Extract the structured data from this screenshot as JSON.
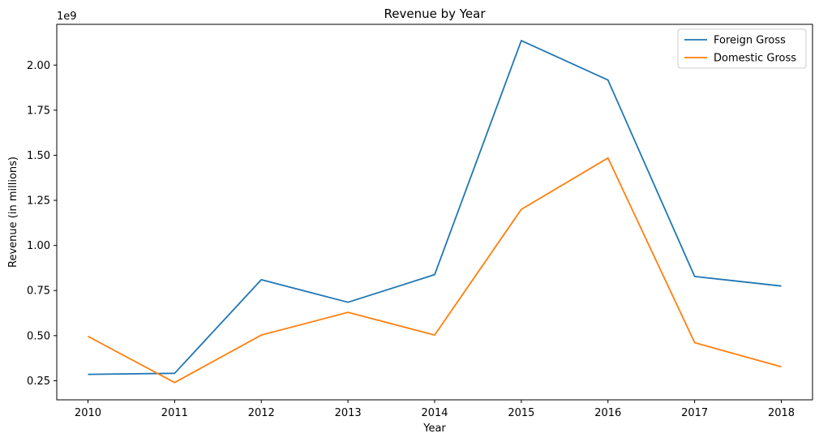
{
  "chart_data": {
    "type": "line",
    "title": "Revenue by Year",
    "xlabel": "Year",
    "ylabel": "Revenue (in millions)",
    "y_offset_label": "1e9",
    "categories": [
      "2010",
      "2011",
      "2012",
      "2013",
      "2014",
      "2015",
      "2016",
      "2017",
      "2018"
    ],
    "xlim": [
      2009.64,
      2018.36
    ],
    "ylim": [
      0.144,
      2.226
    ],
    "yticks": [
      0.25,
      0.5,
      0.75,
      1.0,
      1.25,
      1.5,
      1.75,
      2.0
    ],
    "ytick_labels": [
      "0.25",
      "0.50",
      "0.75",
      "1.00",
      "1.25",
      "1.50",
      "1.75",
      "2.00"
    ],
    "grid": false,
    "legend_position": "top-right",
    "series": [
      {
        "name": "Foreign Gross",
        "color": "#1f77b4",
        "values": [
          0.285,
          0.291,
          0.81,
          0.685,
          0.838,
          2.136,
          1.917,
          0.828,
          0.775
        ]
      },
      {
        "name": "Domestic Gross",
        "color": "#ff7f0e",
        "values": [
          0.496,
          0.24,
          0.503,
          0.629,
          0.503,
          1.2,
          1.485,
          0.461,
          0.327
        ]
      }
    ]
  }
}
